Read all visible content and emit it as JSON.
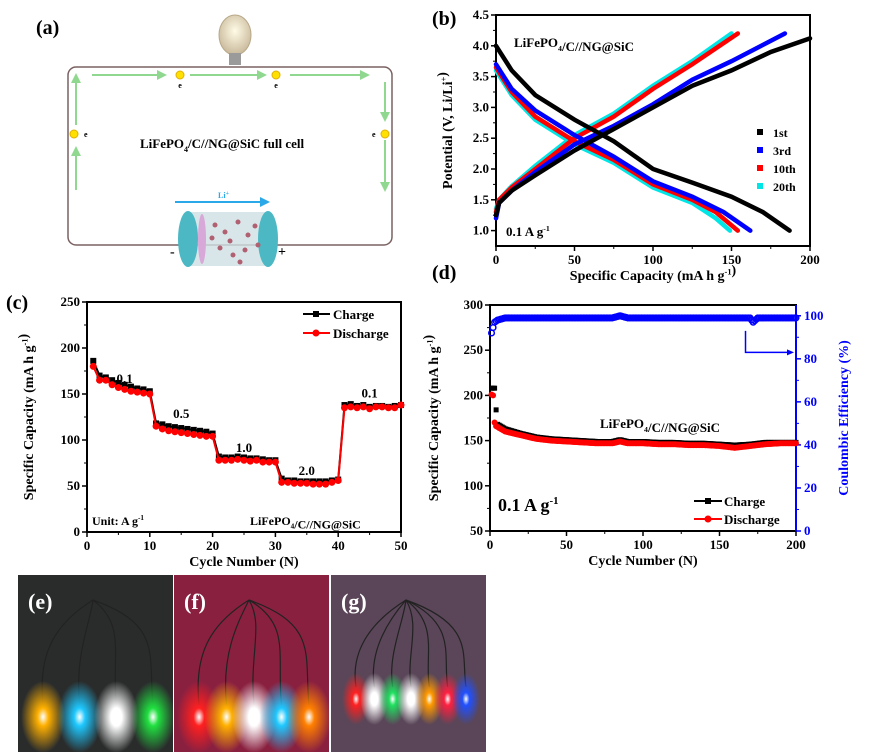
{
  "panels": {
    "a": {
      "label": "(a)",
      "title_main": "LiFePO",
      "title_sub": "4",
      "title_rest": "/C//NG@SiC  full cell",
      "electron_label": "e",
      "ion_label": "Li",
      "ion_sup": "+",
      "minus": "-",
      "plus": "+"
    },
    "b": {
      "label": "(b)"
    },
    "c": {
      "label": "(c)"
    },
    "d": {
      "label": "(d)"
    },
    "e": {
      "label": "(e)"
    },
    "f": {
      "label": "(f)"
    },
    "g": {
      "label": "(g)"
    }
  },
  "led_colors": {
    "e": [
      "#ffb000",
      "#1ec8ff",
      "#ffffff",
      "#20e040"
    ],
    "f": [
      "#ff2020",
      "#ffb000",
      "#ffffff",
      "#1ec8ff",
      "#ff8000"
    ],
    "g": [
      "#ff2020",
      "#ffffff",
      "#20e060",
      "#ffffff",
      "#ff9a00",
      "#ff2040",
      "#2050ff"
    ]
  },
  "chart_data": [
    {
      "id": "b",
      "type": "line",
      "title": "",
      "annotation": "LiFePO4/C//NG@SiC",
      "rate_label": "0.1 A g-1",
      "xlabel": "Specific Capacity (mA h g-1)",
      "ylabel": "Potential (V, Li/Li+)",
      "xlim": [
        0,
        200
      ],
      "ylim": [
        0.75,
        4.5
      ],
      "xticks": [
        0,
        50,
        100,
        150,
        200
      ],
      "yticks": [
        1.0,
        1.5,
        2.0,
        2.5,
        3.0,
        3.5,
        4.0,
        4.5
      ],
      "legend_position": "right",
      "series": [
        {
          "name": "1st",
          "color": "#000000",
          "charge": [
            [
              0,
              1.25
            ],
            [
              2,
              1.45
            ],
            [
              10,
              1.65
            ],
            [
              25,
              1.9
            ],
            [
              50,
              2.3
            ],
            [
              75,
              2.65
            ],
            [
              100,
              3.0
            ],
            [
              125,
              3.35
            ],
            [
              150,
              3.6
            ],
            [
              175,
              3.9
            ],
            [
              200,
              4.12
            ]
          ],
          "discharge": [
            [
              0,
              4.0
            ],
            [
              10,
              3.6
            ],
            [
              25,
              3.2
            ],
            [
              50,
              2.8
            ],
            [
              75,
              2.45
            ],
            [
              100,
              2.0
            ],
            [
              125,
              1.78
            ],
            [
              150,
              1.55
            ],
            [
              170,
              1.3
            ],
            [
              187,
              1.0
            ]
          ]
        },
        {
          "name": "3rd",
          "color": "#0000ff",
          "charge": [
            [
              0,
              1.2
            ],
            [
              2,
              1.45
            ],
            [
              10,
              1.65
            ],
            [
              25,
              1.95
            ],
            [
              50,
              2.4
            ],
            [
              75,
              2.7
            ],
            [
              100,
              3.05
            ],
            [
              125,
              3.45
            ],
            [
              150,
              3.75
            ],
            [
              184,
              4.2
            ]
          ],
          "discharge": [
            [
              0,
              3.7
            ],
            [
              10,
              3.3
            ],
            [
              25,
              2.95
            ],
            [
              50,
              2.55
            ],
            [
              75,
              2.2
            ],
            [
              100,
              1.8
            ],
            [
              125,
              1.55
            ],
            [
              145,
              1.3
            ],
            [
              162,
              1.0
            ]
          ]
        },
        {
          "name": "10th",
          "color": "#ff0000",
          "charge": [
            [
              0,
              1.3
            ],
            [
              2,
              1.5
            ],
            [
              10,
              1.7
            ],
            [
              25,
              2.0
            ],
            [
              50,
              2.5
            ],
            [
              75,
              2.85
            ],
            [
              100,
              3.3
            ],
            [
              125,
              3.7
            ],
            [
              154,
              4.2
            ]
          ],
          "discharge": [
            [
              0,
              3.65
            ],
            [
              10,
              3.25
            ],
            [
              25,
              2.85
            ],
            [
              50,
              2.45
            ],
            [
              75,
              2.15
            ],
            [
              100,
              1.75
            ],
            [
              125,
              1.5
            ],
            [
              140,
              1.3
            ],
            [
              154,
              1.0
            ]
          ]
        },
        {
          "name": "20th",
          "color": "#00e5e5",
          "charge": [
            [
              0,
              1.35
            ],
            [
              2,
              1.5
            ],
            [
              10,
              1.72
            ],
            [
              25,
              2.05
            ],
            [
              50,
              2.55
            ],
            [
              75,
              2.9
            ],
            [
              100,
              3.35
            ],
            [
              125,
              3.75
            ],
            [
              150,
              4.2
            ]
          ],
          "discharge": [
            [
              0,
              3.6
            ],
            [
              10,
              3.2
            ],
            [
              25,
              2.8
            ],
            [
              50,
              2.4
            ],
            [
              75,
              2.1
            ],
            [
              100,
              1.7
            ],
            [
              125,
              1.45
            ],
            [
              140,
              1.2
            ],
            [
              149,
              1.0
            ]
          ]
        }
      ]
    },
    {
      "id": "c",
      "type": "line",
      "title": "",
      "annotation": "LiFePO4/C//NG@SiC",
      "unit_label": "Unit: A g-1",
      "xlabel": "Cycle Number (N)",
      "ylabel": "Specific Capacity (mA h g-1)",
      "xlim": [
        0,
        50
      ],
      "ylim": [
        0,
        250
      ],
      "xticks": [
        0,
        10,
        20,
        30,
        40,
        50
      ],
      "yticks": [
        0,
        50,
        100,
        150,
        200,
        250
      ],
      "legend_position": "top-right",
      "rate_labels": [
        {
          "text": "0.1",
          "x": 6,
          "y": 162
        },
        {
          "text": "0.5",
          "x": 15,
          "y": 124
        },
        {
          "text": "1.0",
          "x": 25,
          "y": 87
        },
        {
          "text": "2.0",
          "x": 35,
          "y": 62
        },
        {
          "text": "0.1",
          "x": 45,
          "y": 146
        }
      ],
      "series": [
        {
          "name": "Charge",
          "color": "#000000",
          "marker": "square",
          "x": [
            1,
            2,
            3,
            4,
            5,
            6,
            7,
            8,
            9,
            10,
            11,
            12,
            13,
            14,
            15,
            16,
            17,
            18,
            19,
            20,
            21,
            22,
            23,
            24,
            25,
            26,
            27,
            28,
            29,
            30,
            31,
            32,
            33,
            34,
            35,
            36,
            37,
            38,
            39,
            40,
            41,
            42,
            43,
            44,
            45,
            46,
            47,
            48,
            49,
            50
          ],
          "y": [
            186,
            170,
            168,
            165,
            162,
            160,
            158,
            156,
            155,
            153,
            118,
            117,
            115,
            114,
            113,
            112,
            111,
            110,
            109,
            107,
            82,
            81,
            81,
            82,
            81,
            80,
            80,
            79,
            78,
            78,
            58,
            56,
            56,
            55,
            55,
            55,
            55,
            55,
            56,
            57,
            138,
            139,
            137,
            138,
            136,
            137,
            137,
            136,
            137,
            138
          ]
        },
        {
          "name": "Discharge",
          "color": "#ff0000",
          "marker": "circle",
          "x": [
            1,
            2,
            3,
            4,
            5,
            6,
            7,
            8,
            9,
            10,
            11,
            12,
            13,
            14,
            15,
            16,
            17,
            18,
            19,
            20,
            21,
            22,
            23,
            24,
            25,
            26,
            27,
            28,
            29,
            30,
            31,
            32,
            33,
            34,
            35,
            36,
            37,
            38,
            39,
            40,
            41,
            42,
            43,
            44,
            45,
            46,
            47,
            48,
            49,
            50
          ],
          "y": [
            180,
            165,
            165,
            160,
            157,
            155,
            153,
            152,
            151,
            150,
            115,
            112,
            110,
            109,
            108,
            107,
            106,
            105,
            104,
            104,
            78,
            78,
            78,
            79,
            78,
            77,
            78,
            76,
            76,
            76,
            54,
            54,
            53,
            53,
            53,
            52,
            52,
            52,
            54,
            56,
            135,
            136,
            135,
            136,
            134,
            136,
            136,
            135,
            135,
            138
          ]
        }
      ]
    },
    {
      "id": "d",
      "type": "scatter",
      "title": "",
      "annotation": "LiFePO4/C//NG@SiC",
      "rate_label": "0.1 A g-1",
      "xlabel": "Cycle Number (N)",
      "ylabel": "Specific Capacity (mA h g-1)",
      "y2label": "Coulombic Efficiency (%)",
      "xlim": [
        0,
        200
      ],
      "ylim": [
        50,
        300
      ],
      "y2lim": [
        0,
        105
      ],
      "xticks": [
        0,
        50,
        100,
        150,
        200
      ],
      "yticks": [
        50,
        100,
        150,
        200,
        250,
        300
      ],
      "y2ticks": [
        0,
        20,
        40,
        60,
        80,
        100
      ],
      "legend_position": "bottom-right",
      "series": [
        {
          "name": "Charge",
          "color": "#000000",
          "marker": "square",
          "axis": "left",
          "x": [
            1,
            2,
            3,
            4,
            5,
            10,
            20,
            30,
            40,
            50,
            60,
            70,
            80,
            85,
            90,
            100,
            110,
            120,
            130,
            140,
            150,
            160,
            170,
            180,
            190,
            200
          ],
          "y": [
            208,
            208,
            208,
            184,
            168,
            163,
            158,
            154,
            152,
            151,
            150,
            149,
            149,
            151,
            149,
            149,
            148,
            148,
            147,
            147,
            146,
            145,
            146,
            148,
            148,
            148
          ]
        },
        {
          "name": "Discharge",
          "color": "#ff0000",
          "marker": "circle",
          "axis": "left",
          "x": [
            1,
            2,
            3,
            4,
            5,
            10,
            20,
            30,
            40,
            50,
            60,
            70,
            80,
            85,
            90,
            100,
            110,
            120,
            130,
            140,
            150,
            160,
            170,
            180,
            190,
            200
          ],
          "y": [
            201,
            200,
            170,
            166,
            165,
            160,
            156,
            152,
            150,
            149,
            148,
            147,
            147,
            149,
            147,
            147,
            146,
            146,
            145,
            145,
            144,
            142,
            144,
            146,
            147,
            147
          ]
        },
        {
          "name": "Coulombic Efficiency",
          "color": "#0000ff",
          "marker": "open-circle",
          "axis": "right",
          "x": [
            1,
            3,
            5,
            10,
            20,
            30,
            40,
            50,
            60,
            70,
            80,
            85,
            90,
            100,
            110,
            120,
            130,
            140,
            150,
            160,
            170,
            172,
            175,
            180,
            190,
            200
          ],
          "y": [
            92,
            97,
            98,
            99,
            99,
            99,
            99,
            99,
            99,
            99,
            99,
            100,
            99,
            99,
            99,
            99,
            99,
            99,
            99,
            99,
            99,
            97,
            99,
            99,
            99,
            99
          ]
        }
      ],
      "arrow": "points-right-to-CE-axis"
    }
  ]
}
